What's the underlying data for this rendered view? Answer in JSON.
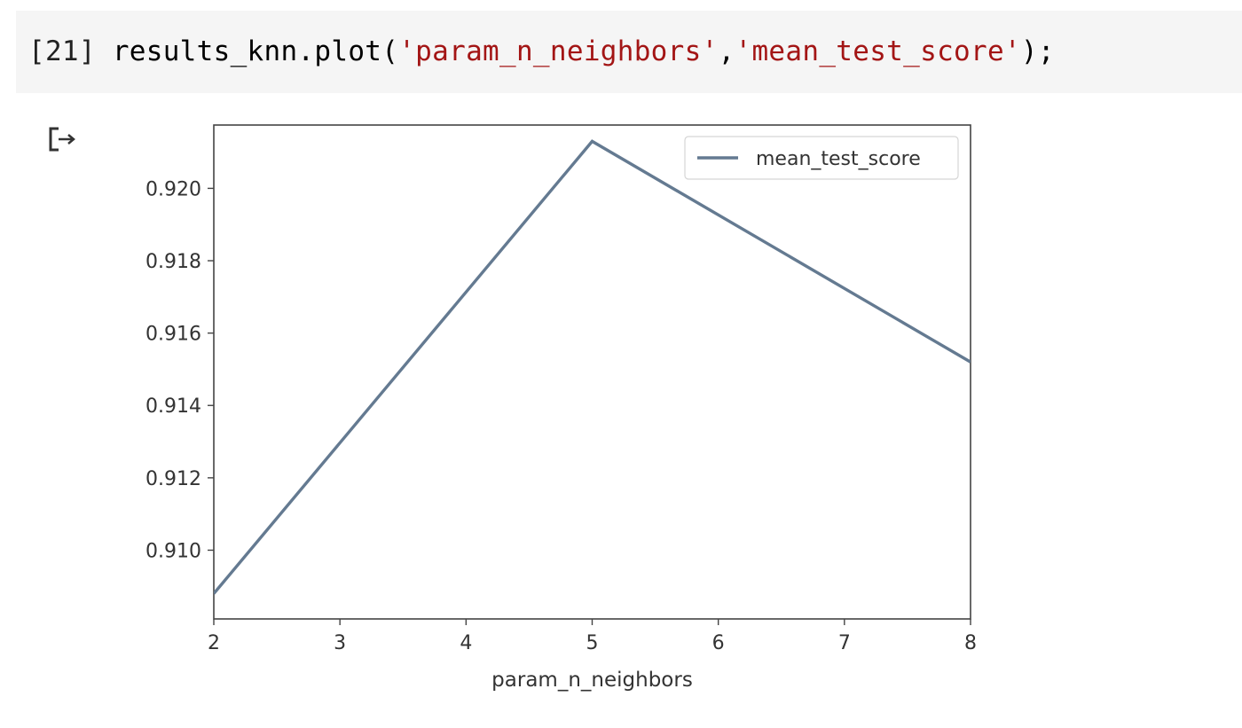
{
  "cell": {
    "execution_count": "[21]",
    "code_prefix": "results_knn.plot(",
    "code_arg1": "'param_n_neighbors'",
    "code_comma": ",",
    "code_arg2": "'mean_test_score'",
    "code_suffix": ");"
  },
  "output": {
    "icon": "output-redirect-icon"
  },
  "colors": {
    "line": "#647a91",
    "string": "#a31515",
    "cell_bg": "#f5f5f5"
  },
  "chart_data": {
    "type": "line",
    "x": [
      2,
      5,
      8
    ],
    "series": [
      {
        "name": "mean_test_score",
        "values": [
          0.9088,
          0.9213,
          0.9152
        ]
      }
    ],
    "xlabel": "param_n_neighbors",
    "ylabel": "",
    "xlim": [
      2,
      8
    ],
    "ylim": [
      0.9081,
      0.92175
    ],
    "xticks": [
      2,
      3,
      4,
      5,
      6,
      7,
      8
    ],
    "xtick_labels": [
      "2",
      "3",
      "4",
      "5",
      "6",
      "7",
      "8"
    ],
    "yticks": [
      0.91,
      0.912,
      0.914,
      0.916,
      0.918,
      0.92
    ],
    "ytick_labels": [
      "0.910",
      "0.912",
      "0.914",
      "0.916",
      "0.918",
      "0.920"
    ],
    "legend": {
      "entries": [
        "mean_test_score"
      ],
      "placement": "top-right"
    },
    "grid": false
  }
}
